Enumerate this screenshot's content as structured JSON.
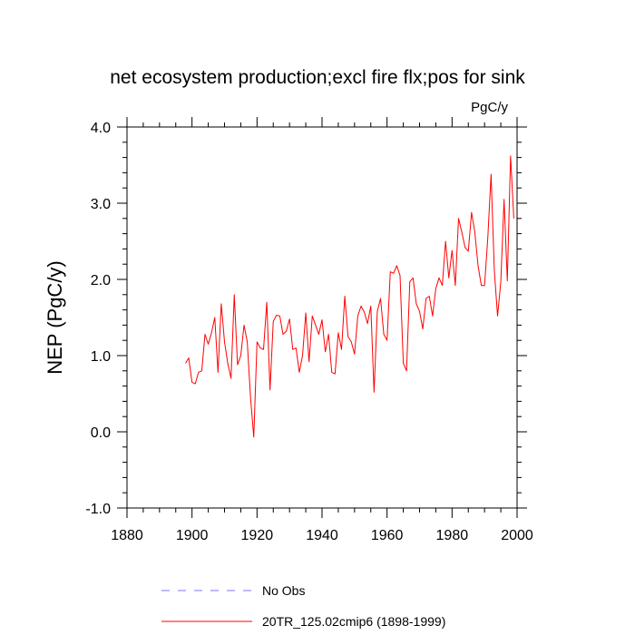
{
  "chart_data": {
    "type": "line",
    "title": "net ecosystem production;excl fire flx;pos for sink",
    "units_label": "PgC/y",
    "xlabel": "",
    "ylabel": "NEP  (PgC/y)",
    "xlim": [
      1880,
      2000
    ],
    "ylim": [
      -1.0,
      4.0
    ],
    "xticks": [
      1880,
      1900,
      1920,
      1940,
      1960,
      1980,
      2000
    ],
    "xtick_labels": [
      "1880",
      "1900",
      "1920",
      "1940",
      "1960",
      "1980",
      "2000"
    ],
    "yticks": [
      -1.0,
      0.0,
      1.0,
      2.0,
      3.0,
      4.0
    ],
    "ytick_labels": [
      "-1.0",
      "0.0",
      "1.0",
      "2.0",
      "3.0",
      "4.0"
    ],
    "grid": false,
    "legend_position": "bottom",
    "series": [
      {
        "name": "No Obs",
        "color": "#7777ff",
        "style": "dashed",
        "x": [],
        "y": []
      },
      {
        "name": "20TR_125.02cmip6 (1898-1999)",
        "color": "#ff0000",
        "style": "solid",
        "x": [
          1898,
          1899,
          1900,
          1901,
          1902,
          1903,
          1904,
          1905,
          1906,
          1907,
          1908,
          1909,
          1910,
          1911,
          1912,
          1913,
          1914,
          1915,
          1916,
          1917,
          1918,
          1919,
          1920,
          1921,
          1922,
          1923,
          1924,
          1925,
          1926,
          1927,
          1928,
          1929,
          1930,
          1931,
          1932,
          1933,
          1934,
          1935,
          1936,
          1937,
          1938,
          1939,
          1940,
          1941,
          1942,
          1943,
          1944,
          1945,
          1946,
          1947,
          1948,
          1949,
          1950,
          1951,
          1952,
          1953,
          1954,
          1955,
          1956,
          1957,
          1958,
          1959,
          1960,
          1961,
          1962,
          1963,
          1964,
          1965,
          1966,
          1967,
          1968,
          1969,
          1970,
          1971,
          1972,
          1973,
          1974,
          1975,
          1976,
          1977,
          1978,
          1979,
          1980,
          1981,
          1982,
          1983,
          1984,
          1985,
          1986,
          1987,
          1988,
          1989,
          1990,
          1991,
          1992,
          1993,
          1994,
          1995,
          1996,
          1997,
          1998,
          1999
        ],
        "y": [
          0.9,
          0.97,
          0.65,
          0.63,
          0.78,
          0.8,
          1.28,
          1.15,
          1.3,
          1.5,
          0.78,
          1.68,
          1.18,
          0.9,
          0.7,
          1.8,
          0.88,
          1.0,
          1.4,
          1.18,
          0.45,
          -0.07,
          1.18,
          1.1,
          1.08,
          1.7,
          0.55,
          1.45,
          1.53,
          1.52,
          1.28,
          1.32,
          1.48,
          1.08,
          1.1,
          0.78,
          1.0,
          1.56,
          0.92,
          1.52,
          1.4,
          1.28,
          1.47,
          1.05,
          1.28,
          0.78,
          0.76,
          1.3,
          1.08,
          1.78,
          1.25,
          1.18,
          1.02,
          1.52,
          1.65,
          1.57,
          1.42,
          1.65,
          0.52,
          1.58,
          1.75,
          1.28,
          1.2,
          2.1,
          2.08,
          2.18,
          2.05,
          0.9,
          0.8,
          1.97,
          2.02,
          1.68,
          1.58,
          1.35,
          1.75,
          1.78,
          1.52,
          1.88,
          2.02,
          1.92,
          2.5,
          2.02,
          2.38,
          1.92,
          2.8,
          2.62,
          2.42,
          2.37,
          2.88,
          2.62,
          2.18,
          1.92,
          1.92,
          2.55,
          3.38,
          2.12,
          1.52,
          1.97,
          3.05,
          1.98,
          3.62,
          2.8
        ]
      }
    ]
  }
}
